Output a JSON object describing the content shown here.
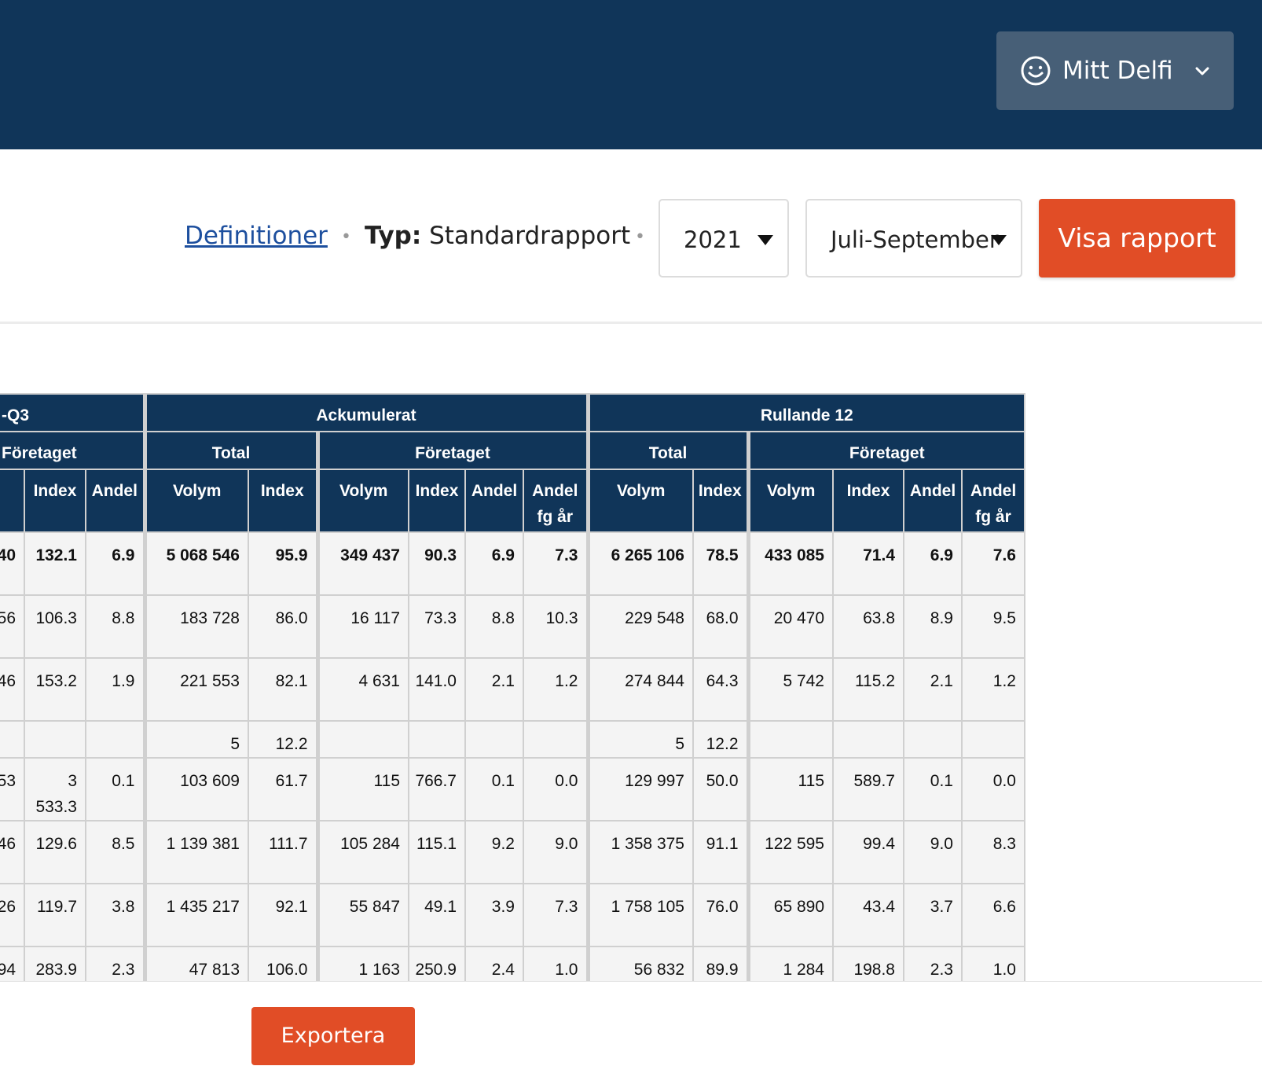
{
  "header": {
    "account_label": "Mitt Delfi"
  },
  "toolbar": {
    "definitions_link": "Definitioner",
    "type_label": "Typ:",
    "type_value": "Standardrapport",
    "year_value": "2021",
    "period_value": "Juli-September",
    "show_report_label": "Visa rapport"
  },
  "table": {
    "group_headers": [
      "-Q3",
      "Ackumulerat",
      "Rullande 12"
    ],
    "sub_headers": [
      "Företaget",
      "Total",
      "Företaget",
      "Total",
      "Företaget"
    ],
    "columns": [
      "",
      "Index",
      "Andel",
      "Volym",
      "Index",
      "Volym",
      "Index",
      "Andel",
      "Andel fg år",
      "Volym",
      "Index",
      "Volym",
      "Index",
      "Andel",
      "Andel fg år"
    ],
    "rows": [
      [
        "40",
        "132.1",
        "6.9",
        "5 068 546",
        "95.9",
        "349 437",
        "90.3",
        "6.9",
        "7.3",
        "6 265 106",
        "78.5",
        "433 085",
        "71.4",
        "6.9",
        "7.6"
      ],
      [
        "56",
        "106.3",
        "8.8",
        "183 728",
        "86.0",
        "16 117",
        "73.3",
        "8.8",
        "10.3",
        "229 548",
        "68.0",
        "20 470",
        "63.8",
        "8.9",
        "9.5"
      ],
      [
        "46",
        "153.2",
        "1.9",
        "221 553",
        "82.1",
        "4 631",
        "141.0",
        "2.1",
        "1.2",
        "274 844",
        "64.3",
        "5 742",
        "115.2",
        "2.1",
        "1.2"
      ],
      [
        "",
        "",
        "",
        "5",
        "12.2",
        "",
        "",
        "",
        "",
        "5",
        "12.2",
        "",
        "",
        "",
        ""
      ],
      [
        "53",
        "3 533.3",
        "0.1",
        "103 609",
        "61.7",
        "115",
        "766.7",
        "0.1",
        "0.0",
        "129 997",
        "50.0",
        "115",
        "589.7",
        "0.1",
        "0.0"
      ],
      [
        "46",
        "129.6",
        "8.5",
        "1 139 381",
        "111.7",
        "105 284",
        "115.1",
        "9.2",
        "9.0",
        "1 358 375",
        "91.1",
        "122 595",
        "99.4",
        "9.0",
        "8.3"
      ],
      [
        "26",
        "119.7",
        "3.8",
        "1 435 217",
        "92.1",
        "55 847",
        "49.1",
        "3.9",
        "7.3",
        "1 758 105",
        "76.0",
        "65 890",
        "43.4",
        "3.7",
        "6.6"
      ],
      [
        "94",
        "283.9",
        "2.3",
        "47 813",
        "106.0",
        "1 163",
        "250.9",
        "2.4",
        "1.0",
        "56 832",
        "89.9",
        "1 284",
        "198.8",
        "2.3",
        "1.0"
      ]
    ]
  },
  "footer": {
    "export_label": "Exportera"
  }
}
